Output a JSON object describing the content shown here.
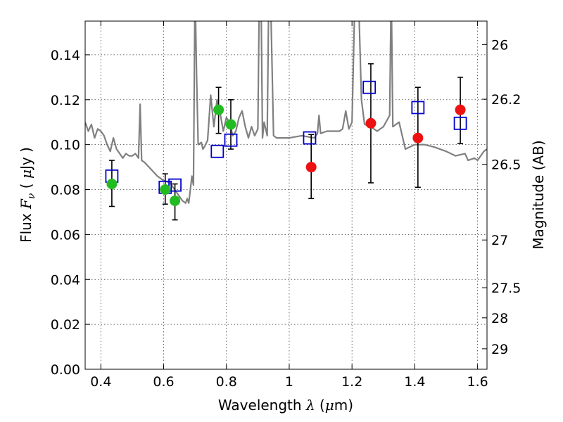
{
  "chart_data": {
    "type": "scatter",
    "xlabel": "Wavelength  λ (μm)",
    "ylabel": "Flux  F_ν  ( μJy )",
    "y2label": "Magnitude (AB)",
    "xlim": [
      0.35,
      1.63
    ],
    "ylim": [
      0.0,
      0.155
    ],
    "grid": true,
    "x_ticks": [
      0.4,
      0.6,
      0.8,
      1.0,
      1.2,
      1.4,
      1.6
    ],
    "x_tick_labels": [
      "0.4",
      "0.6",
      "0.8",
      "1",
      "1.2",
      "1.4",
      "1.6"
    ],
    "y_ticks": [
      0.0,
      0.02,
      0.04,
      0.06,
      0.08,
      0.1,
      0.12,
      0.14
    ],
    "y_tick_labels": [
      "0.00",
      "0.02",
      "0.04",
      "0.06",
      "0.08",
      "0.10",
      "0.12",
      "0.14"
    ],
    "y2_ticks": [
      26.0,
      26.2,
      26.5,
      27.0,
      27.5,
      28.0,
      29.0
    ],
    "y2_tick_labels": [
      "26",
      "26.2",
      "26.5",
      "27",
      "27.5",
      "28",
      "29"
    ],
    "colors": {
      "spectrum": "#808080",
      "green_points": "#22bb22",
      "red_points": "#ee1111",
      "model_boxes": "#0000cc",
      "error_bars": "#000000"
    },
    "series": [
      {
        "marker": "green-circle",
        "x": [
          0.435,
          0.605,
          0.636,
          0.775,
          0.814
        ],
        "y": [
          0.0825,
          0.08,
          0.075,
          0.1155,
          0.109
        ],
        "yerr_low": [
          0.0725,
          0.0735,
          0.0665,
          0.105,
          0.098
        ],
        "yerr_high": [
          0.093,
          0.087,
          0.0825,
          0.1255,
          0.12
        ]
      },
      {
        "marker": "red-circle",
        "x": [
          1.07,
          1.26,
          1.41,
          1.545
        ],
        "y": [
          0.09,
          0.1095,
          0.103,
          0.1155
        ],
        "yerr_low": [
          0.076,
          0.083,
          0.081,
          0.1005
        ],
        "yerr_high": [
          0.1045,
          0.136,
          0.1255,
          0.13
        ]
      },
      {
        "marker": "blue-open-square",
        "x": [
          0.435,
          0.605,
          0.636,
          0.771,
          0.814,
          1.065,
          1.255,
          1.41,
          1.545
        ],
        "y": [
          0.086,
          0.081,
          0.082,
          0.097,
          0.102,
          0.103,
          0.1255,
          0.1165,
          0.1095
        ]
      },
      {
        "type": "line",
        "marker": "gray-spectrum",
        "x": [
          0.35,
          0.36,
          0.37,
          0.38,
          0.39,
          0.4,
          0.41,
          0.42,
          0.43,
          0.44,
          0.45,
          0.46,
          0.47,
          0.48,
          0.49,
          0.5,
          0.51,
          0.52,
          0.525,
          0.53,
          0.54,
          0.56,
          0.58,
          0.6,
          0.62,
          0.64,
          0.65,
          0.66,
          0.67,
          0.675,
          0.68,
          0.69,
          0.695,
          0.7,
          0.705,
          0.71,
          0.72,
          0.725,
          0.73,
          0.74,
          0.75,
          0.76,
          0.77,
          0.78,
          0.79,
          0.8,
          0.81,
          0.82,
          0.83,
          0.84,
          0.85,
          0.86,
          0.87,
          0.88,
          0.89,
          0.9,
          0.905,
          0.91,
          0.915,
          0.92,
          0.93,
          0.935,
          0.94,
          0.95,
          0.96,
          1.0,
          1.04,
          1.08,
          1.09,
          1.095,
          1.1,
          1.12,
          1.16,
          1.17,
          1.18,
          1.19,
          1.2,
          1.21,
          1.22,
          1.23,
          1.24,
          1.26,
          1.28,
          1.3,
          1.32,
          1.325,
          1.33,
          1.35,
          1.37,
          1.4,
          1.43,
          1.46,
          1.5,
          1.53,
          1.56,
          1.57,
          1.59,
          1.6,
          1.61,
          1.62,
          1.63
        ],
        "y": [
          0.11,
          0.106,
          0.109,
          0.103,
          0.107,
          0.106,
          0.104,
          0.1,
          0.097,
          0.103,
          0.098,
          0.096,
          0.094,
          0.096,
          0.095,
          0.095,
          0.096,
          0.094,
          0.118,
          0.093,
          0.092,
          0.089,
          0.086,
          0.084,
          0.083,
          0.079,
          0.077,
          0.075,
          0.074,
          0.076,
          0.074,
          0.086,
          0.082,
          0.17,
          0.13,
          0.1,
          0.101,
          0.098,
          0.099,
          0.102,
          0.122,
          0.108,
          0.12,
          0.114,
          0.106,
          0.112,
          0.11,
          0.104,
          0.106,
          0.112,
          0.115,
          0.108,
          0.103,
          0.108,
          0.104,
          0.107,
          0.17,
          0.17,
          0.103,
          0.11,
          0.104,
          0.17,
          0.17,
          0.104,
          0.103,
          0.103,
          0.104,
          0.103,
          0.105,
          0.113,
          0.105,
          0.106,
          0.106,
          0.107,
          0.115,
          0.107,
          0.11,
          0.17,
          0.17,
          0.12,
          0.109,
          0.108,
          0.106,
          0.108,
          0.113,
          0.17,
          0.108,
          0.11,
          0.098,
          0.1,
          0.1,
          0.099,
          0.097,
          0.095,
          0.096,
          0.093,
          0.094,
          0.093,
          0.095,
          0.097,
          0.098
        ]
      }
    ]
  }
}
